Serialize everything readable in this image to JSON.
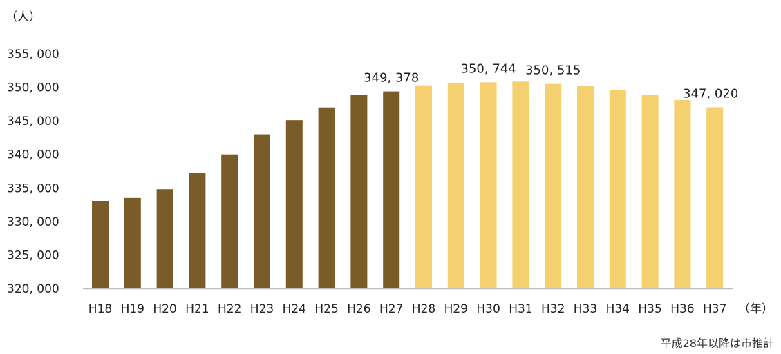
{
  "chart_data": {
    "type": "bar",
    "ylabel": "（人）",
    "xlabel": "（年）",
    "ylim": [
      320000,
      355000
    ],
    "y_ticks": [
      "320, 000",
      "325, 000",
      "330, 000",
      "335, 000",
      "340, 000",
      "345, 000",
      "350, 000",
      "355, 000"
    ],
    "categories": [
      "H18",
      "H19",
      "H20",
      "H21",
      "H22",
      "H23",
      "H24",
      "H25",
      "H26",
      "H27",
      "H28",
      "H29",
      "H30",
      "H31",
      "H32",
      "H33",
      "H34",
      "H35",
      "H36",
      "H37"
    ],
    "series": [
      {
        "values": [
          333000,
          333500,
          334800,
          337200,
          340000,
          343000,
          345100,
          347000,
          348900,
          349378,
          null,
          null,
          null,
          null,
          null,
          null,
          null,
          null,
          null,
          null
        ],
        "color": "#7a5c28"
      },
      {
        "values": [
          null,
          null,
          null,
          null,
          null,
          null,
          null,
          null,
          null,
          null,
          350300,
          350600,
          350744,
          350850,
          350515,
          350250,
          349600,
          348900,
          348100,
          347020
        ],
        "color": "#f4d06f"
      }
    ],
    "data_labels": [
      {
        "category": "H27",
        "text": "349, 378"
      },
      {
        "category": "H30",
        "text": "350, 744"
      },
      {
        "category": "H32",
        "text": "350, 515"
      },
      {
        "category": "H37",
        "text": "347, 020"
      }
    ],
    "grid": false
  },
  "footnote": "平成28年以降は市推計",
  "colors": {
    "axis": "#bfbfbf",
    "text": "#222222"
  }
}
